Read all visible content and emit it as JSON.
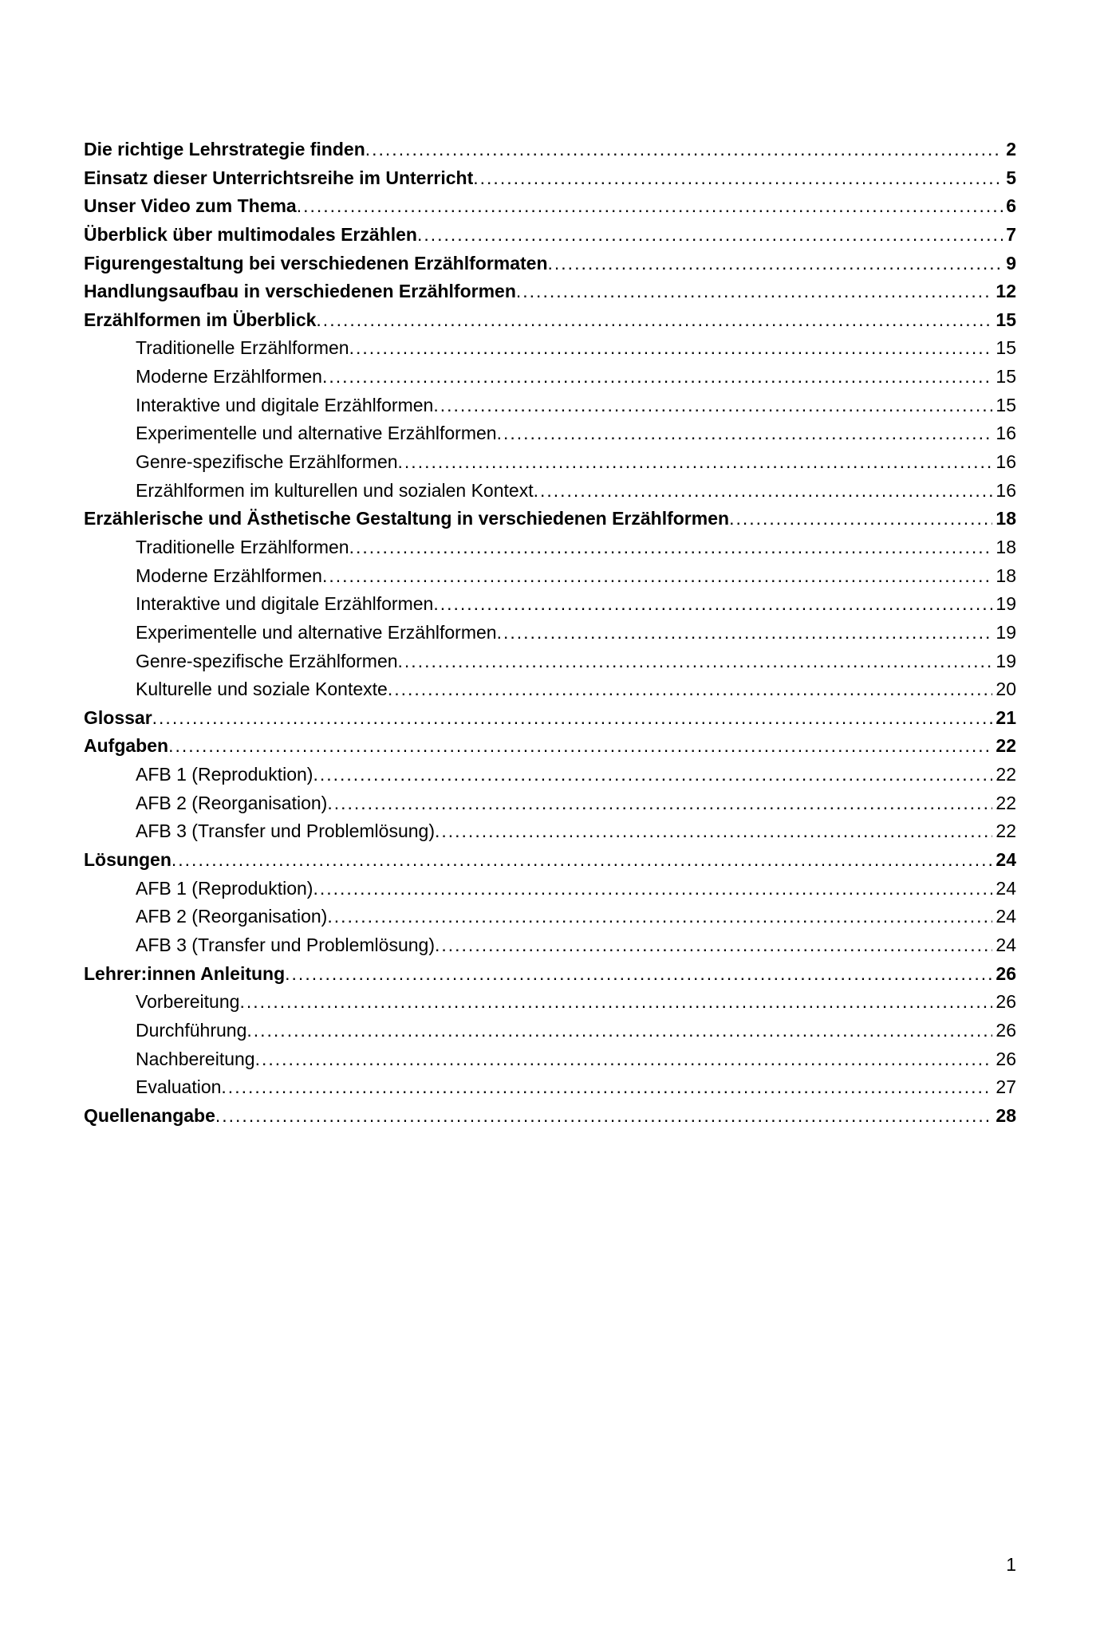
{
  "footer_page_number": "1",
  "entries": [
    {
      "label": "Die richtige Lehrstrategie finden",
      "page": "2",
      "bold": true,
      "sub": false
    },
    {
      "label": "Einsatz dieser Unterrichtsreihe im Unterricht",
      "page": "5",
      "bold": true,
      "sub": false
    },
    {
      "label": "Unser Video zum Thema",
      "page": "6",
      "bold": true,
      "sub": false
    },
    {
      "label": "Überblick über multimodales Erzählen",
      "page": "7",
      "bold": true,
      "sub": false
    },
    {
      "label": "Figurengestaltung bei verschiedenen Erzählformaten",
      "page": "9",
      "bold": true,
      "sub": false
    },
    {
      "label": "Handlungsaufbau in verschiedenen Erzählformen",
      "page": "12",
      "bold": true,
      "sub": false
    },
    {
      "label": "Erzählformen im Überblick",
      "page": "15",
      "bold": true,
      "sub": false
    },
    {
      "label": "Traditionelle Erzählformen",
      "page": "15",
      "bold": false,
      "sub": true
    },
    {
      "label": "Moderne Erzählformen",
      "page": "15",
      "bold": false,
      "sub": true
    },
    {
      "label": "Interaktive und digitale Erzählformen",
      "page": "15",
      "bold": false,
      "sub": true
    },
    {
      "label": "Experimentelle und alternative Erzählformen",
      "page": "16",
      "bold": false,
      "sub": true
    },
    {
      "label": "Genre-spezifische Erzählformen",
      "page": "16",
      "bold": false,
      "sub": true
    },
    {
      "label": "Erzählformen im kulturellen und sozialen Kontext",
      "page": "16",
      "bold": false,
      "sub": true
    },
    {
      "label": "Erzählerische und Ästhetische Gestaltung in verschiedenen Erzählformen",
      "page": "18",
      "bold": true,
      "sub": false
    },
    {
      "label": "Traditionelle Erzählformen",
      "page": "18",
      "bold": false,
      "sub": true
    },
    {
      "label": "Moderne Erzählformen",
      "page": "18",
      "bold": false,
      "sub": true
    },
    {
      "label": "Interaktive und digitale Erzählformen",
      "page": "19",
      "bold": false,
      "sub": true
    },
    {
      "label": "Experimentelle und alternative Erzählformen",
      "page": "19",
      "bold": false,
      "sub": true
    },
    {
      "label": "Genre-spezifische Erzählformen",
      "page": "19",
      "bold": false,
      "sub": true
    },
    {
      "label": "Kulturelle und soziale Kontexte",
      "page": "20",
      "bold": false,
      "sub": true
    },
    {
      "label": "Glossar",
      "page": "21",
      "bold": true,
      "sub": false
    },
    {
      "label": "Aufgaben",
      "page": "22",
      "bold": true,
      "sub": false
    },
    {
      "label": "AFB 1 (Reproduktion)",
      "page": "22",
      "bold": false,
      "sub": true
    },
    {
      "label": "AFB 2 (Reorganisation)",
      "page": "22",
      "bold": false,
      "sub": true
    },
    {
      "label": "AFB 3 (Transfer und Problemlösung)",
      "page": "22",
      "bold": false,
      "sub": true
    },
    {
      "label": "Lösungen",
      "page": "24",
      "bold": true,
      "sub": false
    },
    {
      "label": "AFB 1 (Reproduktion)",
      "page": "24",
      "bold": false,
      "sub": true
    },
    {
      "label": "AFB 2 (Reorganisation)",
      "page": "24",
      "bold": false,
      "sub": true
    },
    {
      "label": "AFB 3 (Transfer und Problemlösung)",
      "page": "24",
      "bold": false,
      "sub": true
    },
    {
      "label": "Lehrer:innen Anleitung",
      "page": "26",
      "bold": true,
      "sub": false
    },
    {
      "label": "Vorbereitung",
      "page": "26",
      "bold": false,
      "sub": true
    },
    {
      "label": "Durchführung",
      "page": "26",
      "bold": false,
      "sub": true
    },
    {
      "label": "Nachbereitung",
      "page": "26",
      "bold": false,
      "sub": true
    },
    {
      "label": "Evaluation",
      "page": "27",
      "bold": false,
      "sub": true
    },
    {
      "label": "Quellenangabe",
      "page": "28",
      "bold": true,
      "sub": false
    }
  ]
}
